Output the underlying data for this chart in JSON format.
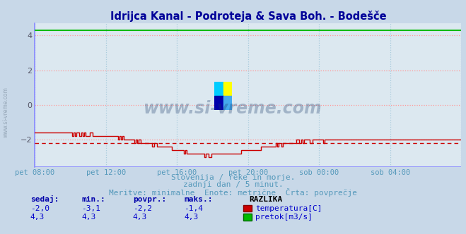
{
  "title": "Idrijca Kanal - Podroteja & Sava Boh. - Bodešče",
  "title_color": "#000099",
  "bg_color": "#c8d8e8",
  "plot_bg_color": "#dce8f0",
  "grid_color_h": "#ff9999",
  "grid_color_v": "#aaccdd",
  "ylim": [
    -3.6,
    4.7
  ],
  "yticks": [
    -2,
    0,
    2,
    4
  ],
  "xlabel_color": "#5599bb",
  "xtick_labels": [
    "pet 08:00",
    "pet 12:00",
    "pet 16:00",
    "pet 20:00",
    "sob 00:00",
    "sob 04:00"
  ],
  "temp_color": "#cc0000",
  "pretok_color": "#00bb00",
  "temp_avg": -2.2,
  "pretok_value": 4.3,
  "subtitle1": "Slovenija / reke in morje.",
  "subtitle2": "zadnji dan / 5 minut.",
  "subtitle3": "Meritve: minimalne  Enote: metrične  Črta: povprečje",
  "subtitle_color": "#5599bb",
  "legend_header": "RAZLIKA",
  "legend_label1": "temperatura[C]",
  "legend_label2": "pretok[m3/s]",
  "table_headers": [
    "sedaj:",
    "min.:",
    "povpr.:",
    "maks.:"
  ],
  "table_row1": [
    "-2,0",
    "-3,1",
    "-2,2",
    "-1,4"
  ],
  "table_row2": [
    "4,3",
    "4,3",
    "4,3",
    "4,3"
  ],
  "table_color": "#0000cc",
  "table_header_color": "#0000aa",
  "n_points": 288,
  "bottom_line_color": "#8888ff",
  "spine_color": "#8888bb",
  "arrow_color": "#cc3333"
}
